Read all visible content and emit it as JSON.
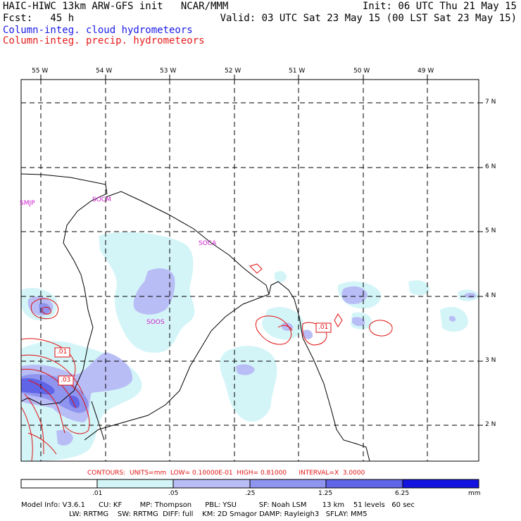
{
  "header": {
    "line1_left": "HAIC-HIWC 13km ARW-GFS init   NCAR/MMM",
    "line1_right": "Init: 06 UTC Thu 21 May 15",
    "line2_left": "Fcst:   45 h",
    "line2_right": "Valid: 03 UTC Sat 23 May 15 (00 LST Sat 23 May 15)",
    "legend_cloud": "Column-integ. cloud hydrometeors",
    "legend_precip": "Column-integ. precip. hydrometeors"
  },
  "colors": {
    "cloud_text": "#1a1ae6",
    "precip_text": "#e61a1a",
    "shade_1": "#d4f5f8",
    "shade_2": "#b9bdf5",
    "shade_3": "#8f95ee",
    "shade_4": "#6064e6",
    "shade_5": "#3a3ce0",
    "shade_6": "#1414e0",
    "contour": "#e01010",
    "station": "#d020d0"
  },
  "map": {
    "longitude_labels": [
      "55 W",
      "54 W",
      "53 W",
      "52 W",
      "51 W",
      "50 W",
      "49 W"
    ],
    "latitude_labels": [
      "7 N",
      "6 N",
      "5 N",
      "4 N",
      "3 N",
      "2 N"
    ],
    "stations": [
      "SMJP",
      "SOCM",
      "SOCA",
      "SOOS"
    ],
    "contour_labels": [
      ".01",
      ".03",
      ".01"
    ]
  },
  "colorbar": {
    "ticks": [
      ".01",
      ".05",
      ".25",
      "1.25",
      "6.25"
    ],
    "unit": "mm"
  },
  "footer": {
    "contours": "CONTOURS:  UNITS=mm  LOW= 0.10000E-01  HIGH= 0.81000      INTERVAL=X  3.0000",
    "info1": "Model Info: V3.6.1      CU: KF        MP: Thompson      PBL: YSU          SF: Noah LSM       13 km    51 levels   60 sec",
    "info2": "LW: RRTMG    SW: RRTMG  DIFF: full    KM: 2D Smagor DAMP: Rayleigh3   SFLAY: MM5"
  }
}
